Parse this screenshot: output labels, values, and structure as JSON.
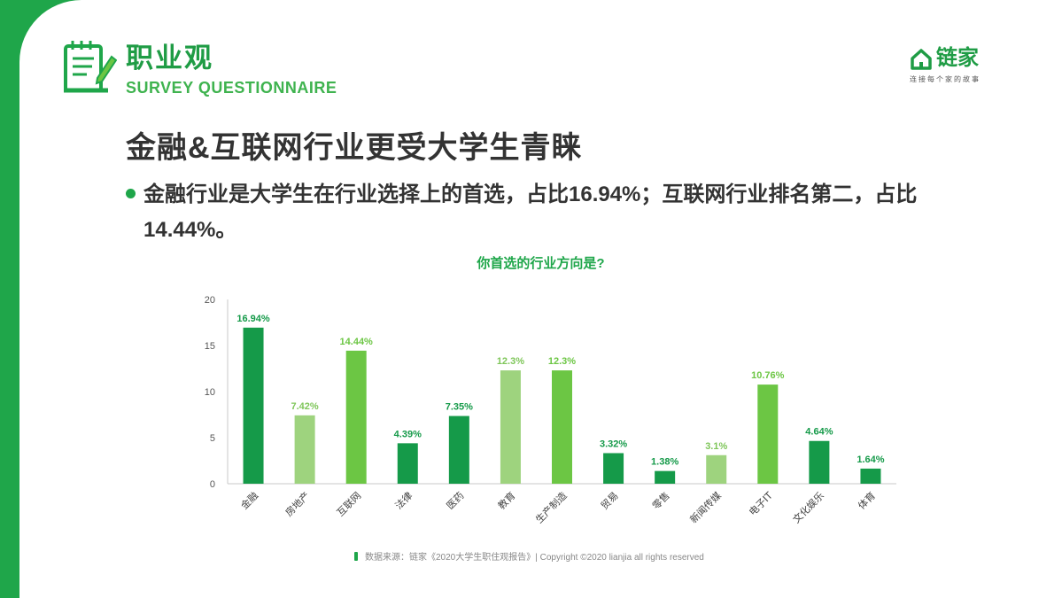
{
  "header": {
    "title": "职业观",
    "subtitle": "SURVEY QUESTIONNAIRE",
    "icon": "survey-notepad-pencil-icon"
  },
  "logo": {
    "name": "链家",
    "slogan": "连接每个家的故事",
    "icon": "house-outline-icon"
  },
  "main_title": "金融&互联网行业更受大学生青睐",
  "bullet": "金融行业是大学生在行业选择上的首选，占比16.94%；互联网行业排名第二，占比14.44%。",
  "footer": "数据来源：链家《2020大学生职住观报告》| Copyright ©2020 lianjia all rights reserved",
  "colors": {
    "brand": "#1fa64a",
    "dark_green": "#159a49",
    "mid_green": "#6cc644",
    "light_green": "#9ed37e",
    "text": "#333333"
  },
  "chart_data": {
    "type": "bar",
    "title": "你首选的行业方向是?",
    "xlabel": "",
    "ylabel": "",
    "ylim": [
      0,
      20
    ],
    "yticks": [
      "0",
      "5",
      "10",
      "15",
      "20"
    ],
    "grid": false,
    "legend": "none",
    "categories": [
      "金融",
      "房地产",
      "互联网",
      "法律",
      "医药",
      "教育",
      "生产制造",
      "贸易",
      "零售",
      "新闻传媒",
      "电子IT",
      "文化娱乐",
      "体育"
    ],
    "values": [
      16.94,
      7.42,
      14.44,
      4.39,
      7.35,
      12.3,
      12.3,
      3.32,
      1.38,
      3.1,
      10.76,
      4.64,
      1.64
    ],
    "labels": [
      "16.94%",
      "7.42%",
      "14.44%",
      "4.39%",
      "7.35%",
      "12.3%",
      "12.3%",
      "3.32%",
      "1.38%",
      "3.1%",
      "10.76%",
      "4.64%",
      "1.64%"
    ],
    "bar_colors": [
      "#159a49",
      "#9ed37e",
      "#6cc644",
      "#159a49",
      "#159a49",
      "#9ed37e",
      "#6cc644",
      "#159a49",
      "#159a49",
      "#9ed37e",
      "#6cc644",
      "#159a49",
      "#159a49"
    ],
    "label_colors": [
      "#159a49",
      "#7fc65a",
      "#6cc644",
      "#159a49",
      "#159a49",
      "#7fc65a",
      "#6cc644",
      "#159a49",
      "#159a49",
      "#7fc65a",
      "#6cc644",
      "#159a49",
      "#159a49"
    ]
  }
}
